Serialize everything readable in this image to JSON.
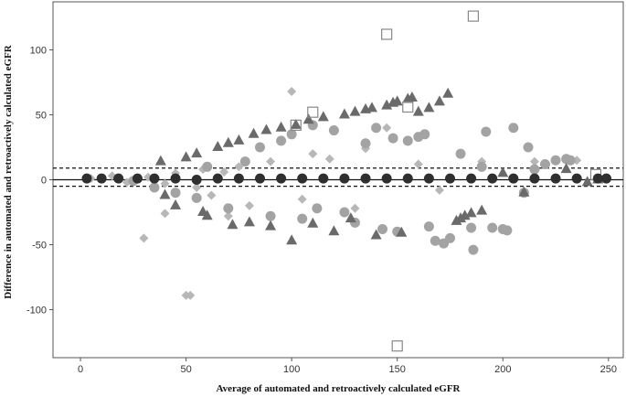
{
  "chart_data": {
    "type": "scatter",
    "title": "",
    "xlabel": "Average of automated and retroactively calculated eGFR",
    "ylabel": "Difference in automated and retroactively calculated eGFR",
    "xlim": [
      -13,
      257
    ],
    "ylim": [
      -137,
      137
    ],
    "xticks": [
      0,
      50,
      100,
      150,
      200,
      250
    ],
    "yticks": [
      -100,
      -50,
      0,
      50,
      100
    ],
    "grid": false,
    "legend": "none",
    "reference_lines": [
      {
        "y": 0,
        "style": "solid"
      },
      {
        "y": 9,
        "style": "dashed"
      },
      {
        "y": -5,
        "style": "dashed"
      }
    ],
    "series": [
      {
        "marker": "diamond",
        "color": "#b7b7b7",
        "points": [
          [
            5,
            1
          ],
          [
            15,
            3
          ],
          [
            22,
            -2
          ],
          [
            30,
            -45
          ],
          [
            32,
            2
          ],
          [
            40,
            -26
          ],
          [
            40,
            -3
          ],
          [
            45,
            5
          ],
          [
            50,
            -89
          ],
          [
            52,
            -89
          ],
          [
            55,
            -6
          ],
          [
            58,
            8
          ],
          [
            62,
            -12
          ],
          [
            68,
            6
          ],
          [
            70,
            -28
          ],
          [
            75,
            10
          ],
          [
            80,
            -20
          ],
          [
            90,
            14
          ],
          [
            100,
            68
          ],
          [
            105,
            -15
          ],
          [
            110,
            20
          ],
          [
            118,
            16
          ],
          [
            130,
            -22
          ],
          [
            135,
            24
          ],
          [
            145,
            40
          ],
          [
            160,
            12
          ],
          [
            170,
            -8
          ],
          [
            190,
            14
          ],
          [
            215,
            14
          ],
          [
            235,
            15
          ]
        ]
      },
      {
        "marker": "circle",
        "color": "#a3a3a3",
        "points": [
          [
            25,
            -1
          ],
          [
            35,
            -6
          ],
          [
            45,
            -10
          ],
          [
            55,
            -14
          ],
          [
            60,
            10
          ],
          [
            70,
            -22
          ],
          [
            78,
            14
          ],
          [
            85,
            25
          ],
          [
            90,
            -28
          ],
          [
            95,
            30
          ],
          [
            100,
            35
          ],
          [
            105,
            -30
          ],
          [
            110,
            42
          ],
          [
            112,
            -22
          ],
          [
            120,
            38
          ],
          [
            125,
            -25
          ],
          [
            130,
            -33
          ],
          [
            135,
            28
          ],
          [
            140,
            40
          ],
          [
            143,
            -38
          ],
          [
            148,
            32
          ],
          [
            150,
            -40
          ],
          [
            155,
            30
          ],
          [
            160,
            33
          ],
          [
            163,
            35
          ],
          [
            165,
            -36
          ],
          [
            168,
            -47
          ],
          [
            172,
            -49
          ],
          [
            175,
            -45
          ],
          [
            180,
            20
          ],
          [
            185,
            -37
          ],
          [
            186,
            -54
          ],
          [
            190,
            10
          ],
          [
            192,
            37
          ],
          [
            195,
            -37
          ],
          [
            200,
            -38
          ],
          [
            202,
            -39
          ],
          [
            205,
            40
          ],
          [
            210,
            -10
          ],
          [
            212,
            25
          ],
          [
            215,
            8
          ],
          [
            220,
            12
          ],
          [
            225,
            15
          ],
          [
            230,
            16
          ],
          [
            232,
            15
          ]
        ]
      },
      {
        "marker": "triangle",
        "color": "#6a6a6a",
        "points": [
          [
            38,
            14
          ],
          [
            40,
            -12
          ],
          [
            45,
            -20
          ],
          [
            50,
            17
          ],
          [
            55,
            20
          ],
          [
            58,
            -25
          ],
          [
            60,
            -28
          ],
          [
            65,
            25
          ],
          [
            70,
            28
          ],
          [
            72,
            -35
          ],
          [
            75,
            30
          ],
          [
            80,
            -33
          ],
          [
            82,
            35
          ],
          [
            88,
            38
          ],
          [
            90,
            -36
          ],
          [
            95,
            40
          ],
          [
            100,
            -47
          ],
          [
            102,
            42
          ],
          [
            108,
            46
          ],
          [
            110,
            -34
          ],
          [
            115,
            48
          ],
          [
            120,
            -40
          ],
          [
            125,
            50
          ],
          [
            128,
            -30
          ],
          [
            130,
            52
          ],
          [
            135,
            54
          ],
          [
            138,
            55
          ],
          [
            140,
            -43
          ],
          [
            145,
            57
          ],
          [
            148,
            59
          ],
          [
            150,
            60
          ],
          [
            152,
            -41
          ],
          [
            155,
            62
          ],
          [
            157,
            63
          ],
          [
            160,
            52
          ],
          [
            165,
            55
          ],
          [
            170,
            60
          ],
          [
            174,
            66
          ],
          [
            178,
            -32
          ],
          [
            180,
            -30
          ],
          [
            182,
            -28
          ],
          [
            185,
            -26
          ],
          [
            190,
            -24
          ],
          [
            200,
            5
          ],
          [
            210,
            -10
          ],
          [
            230,
            8
          ],
          [
            240,
            -2
          ],
          [
            245,
            0
          ]
        ]
      },
      {
        "marker": "hollow-square",
        "color": "#888888",
        "points": [
          [
            102,
            42
          ],
          [
            110,
            52
          ],
          [
            145,
            112
          ],
          [
            150,
            -128
          ],
          [
            155,
            56
          ],
          [
            186,
            126
          ],
          [
            244,
            4
          ]
        ]
      },
      {
        "marker": "circle",
        "color": "#2f2f2f",
        "points": [
          [
            3,
            1
          ],
          [
            10,
            1
          ],
          [
            18,
            1
          ],
          [
            27,
            1
          ],
          [
            35,
            1
          ],
          [
            45,
            1
          ],
          [
            55,
            0
          ],
          [
            65,
            1
          ],
          [
            75,
            1
          ],
          [
            85,
            1
          ],
          [
            95,
            1
          ],
          [
            105,
            1
          ],
          [
            115,
            1
          ],
          [
            125,
            1
          ],
          [
            135,
            1
          ],
          [
            145,
            1
          ],
          [
            155,
            1
          ],
          [
            165,
            1
          ],
          [
            175,
            1
          ],
          [
            185,
            1
          ],
          [
            195,
            1
          ],
          [
            205,
            1
          ],
          [
            215,
            1
          ],
          [
            225,
            1
          ],
          [
            235,
            1
          ],
          [
            245,
            1
          ],
          [
            249,
            1
          ]
        ]
      }
    ]
  }
}
